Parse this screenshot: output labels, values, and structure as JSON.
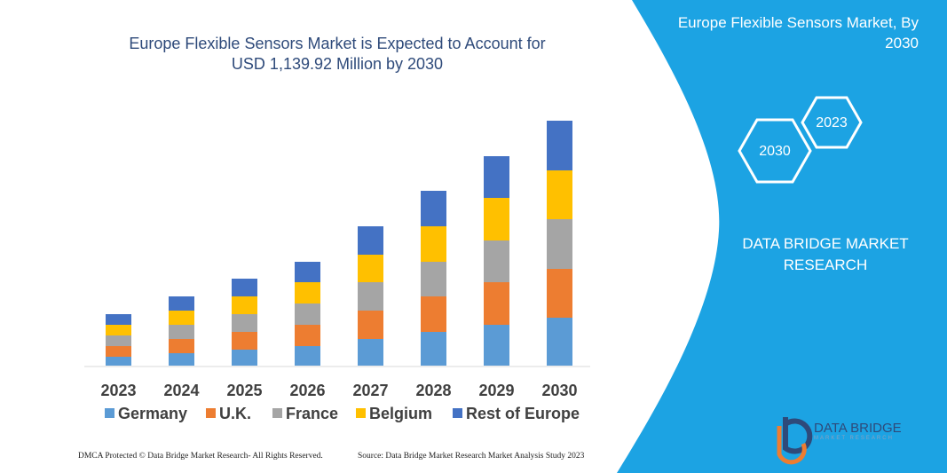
{
  "chart_data": {
    "type": "stacked-bar",
    "title": "Europe Flexible Sensors Market is Expected to Account for USD 1,139.92 Million by 2030",
    "categories": [
      "2023",
      "2024",
      "2025",
      "2026",
      "2027",
      "2028",
      "2029",
      "2030"
    ],
    "series": [
      {
        "name": "Germany",
        "color": "#5b9bd5",
        "values": [
          10,
          14,
          18,
          22,
          30,
          38,
          46,
          54
        ]
      },
      {
        "name": "U.K.",
        "color": "#ed7d31",
        "values": [
          12,
          16,
          20,
          24,
          32,
          40,
          48,
          55
        ]
      },
      {
        "name": "France",
        "color": "#a5a5a5",
        "values": [
          12,
          16,
          20,
          24,
          32,
          39,
          47,
          56
        ]
      },
      {
        "name": "Belgium",
        "color": "#ffc000",
        "values": [
          12,
          16,
          20,
          24,
          31,
          40,
          48,
          55
        ]
      },
      {
        "name": "Rest of Europe",
        "color": "#4472c4",
        "values": [
          12,
          16,
          20,
          23,
          32,
          40,
          47,
          56
        ]
      }
    ]
  },
  "panel": {
    "title": "Europe Flexible Sensors Market, By 2030",
    "hex_back": "2023",
    "hex_front": "2030",
    "brand": "DATA BRIDGE MARKET RESEARCH"
  },
  "logo": {
    "name": "DATA BRIDGE",
    "tagline": "MARKET RESEARCH"
  },
  "footer": {
    "left": "DMCA Protected © Data Bridge Market Research- All Rights Reserved.",
    "right": "Source: Data Bridge Market Research Market Analysis Study 2023"
  }
}
